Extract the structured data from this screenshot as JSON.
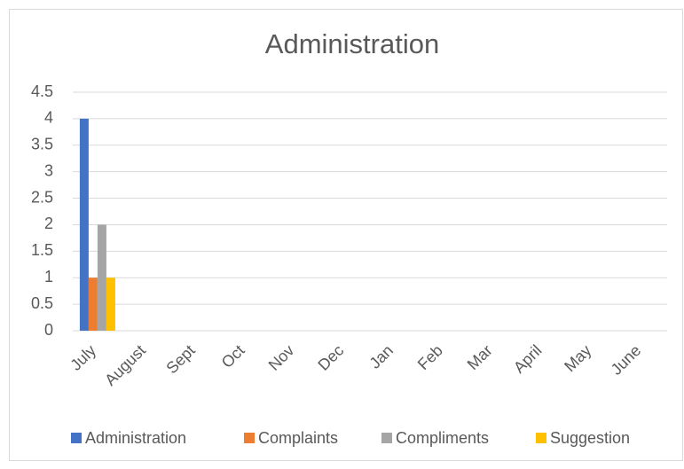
{
  "chart_data": {
    "type": "bar",
    "title": "Administration",
    "categories": [
      "July",
      "August",
      "Sept",
      "Oct",
      "Nov",
      "Dec",
      "Jan",
      "Feb",
      "Mar",
      "April",
      "May",
      "June"
    ],
    "series": [
      {
        "name": "Administration",
        "color": "#4472c4",
        "values": [
          4,
          0,
          0,
          0,
          0,
          0,
          0,
          0,
          0,
          0,
          0,
          0
        ]
      },
      {
        "name": "Complaints",
        "color": "#ed7d31",
        "values": [
          1,
          0,
          0,
          0,
          0,
          0,
          0,
          0,
          0,
          0,
          0,
          0
        ]
      },
      {
        "name": "Compliments",
        "color": "#a5a5a5",
        "values": [
          2,
          0,
          0,
          0,
          0,
          0,
          0,
          0,
          0,
          0,
          0,
          0
        ]
      },
      {
        "name": "Suggestion",
        "color": "#ffc000",
        "values": [
          1,
          0,
          0,
          0,
          0,
          0,
          0,
          0,
          0,
          0,
          0,
          0
        ]
      }
    ],
    "ylim": [
      0,
      4.5
    ],
    "yticks": [
      0,
      0.5,
      1,
      1.5,
      2,
      2.5,
      3,
      3.5,
      4,
      4.5
    ],
    "grid": true,
    "legend": "bottom"
  }
}
